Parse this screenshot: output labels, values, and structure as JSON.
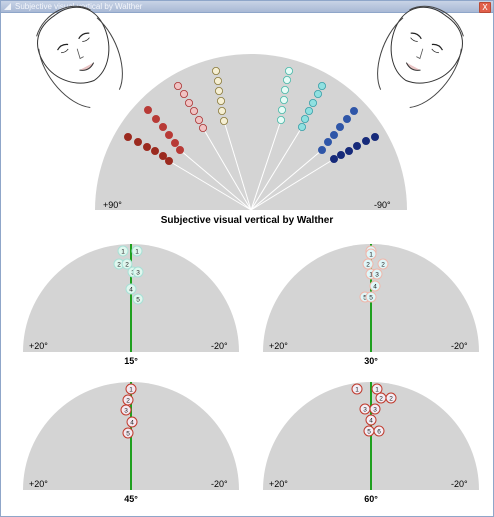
{
  "window": {
    "title": "Subjective visual vertical by Walther",
    "close_glyph": "X"
  },
  "main": {
    "title": "Subjective visual vertical by Walther",
    "left_angle": "+90°",
    "right_angle": "-90°",
    "groups": [
      {
        "color": "#9b2a1f",
        "points": [
          [
            128,
            137
          ],
          [
            138,
            142
          ],
          [
            147,
            147
          ],
          [
            155,
            151
          ],
          [
            163,
            156
          ],
          [
            169,
            161
          ]
        ]
      },
      {
        "color": "#b83a36",
        "points": [
          [
            148,
            110
          ],
          [
            156,
            119
          ],
          [
            163,
            127
          ],
          [
            169,
            135
          ],
          [
            175,
            143
          ],
          [
            180,
            150
          ]
        ]
      },
      {
        "color": "#f0c3c3",
        "stroke": "#a33",
        "points": [
          [
            178,
            86
          ],
          [
            184,
            94
          ],
          [
            189,
            103
          ],
          [
            194,
            111
          ],
          [
            199,
            120
          ],
          [
            203,
            128
          ]
        ]
      },
      {
        "color": "#f5efd3",
        "stroke": "#8a7a3b",
        "points": [
          [
            216,
            71
          ],
          [
            218,
            81
          ],
          [
            219,
            91
          ],
          [
            221,
            101
          ],
          [
            222,
            111
          ],
          [
            224,
            121
          ]
        ]
      },
      {
        "color": "#e6fbf6",
        "stroke": "#48b8a8",
        "points": [
          [
            289,
            71
          ],
          [
            287,
            80
          ],
          [
            285,
            90
          ],
          [
            284,
            100
          ],
          [
            282,
            110
          ],
          [
            281,
            120
          ]
        ]
      },
      {
        "color": "#8fe0e0",
        "stroke": "#3a9fa8",
        "points": [
          [
            322,
            86
          ],
          [
            318,
            94
          ],
          [
            313,
            103
          ],
          [
            309,
            111
          ],
          [
            305,
            119
          ],
          [
            302,
            127
          ]
        ]
      },
      {
        "color": "#2f56a8",
        "points": [
          [
            354,
            111
          ],
          [
            347,
            119
          ],
          [
            340,
            127
          ],
          [
            334,
            135
          ],
          [
            328,
            142
          ],
          [
            322,
            150
          ]
        ]
      },
      {
        "color": "#162a7a",
        "points": [
          [
            375,
            137
          ],
          [
            366,
            141
          ],
          [
            357,
            146
          ],
          [
            349,
            151
          ],
          [
            341,
            155
          ],
          [
            334,
            159
          ]
        ]
      }
    ]
  },
  "panels": [
    {
      "caption": "15°",
      "left_angle": "+20°",
      "right_angle": "-20°",
      "marker_fill": "#dff7ee",
      "marker_stroke": "#a8e0d6",
      "markers": [
        {
          "label": "1",
          "dx": -8,
          "dy": 7
        },
        {
          "label": "1",
          "dx": 6,
          "dy": 7
        },
        {
          "label": "2",
          "dx": -12,
          "dy": 20
        },
        {
          "label": "2",
          "dx": -4,
          "dy": 20
        },
        {
          "label": "3",
          "dx": 2,
          "dy": 28
        },
        {
          "label": "3",
          "dx": 7,
          "dy": 28
        },
        {
          "label": "4",
          "dx": 0,
          "dy": 45
        },
        {
          "label": "5",
          "dx": 7,
          "dy": 55
        }
      ]
    },
    {
      "caption": "30°",
      "left_angle": "+20°",
      "right_angle": "-20°",
      "marker_fill": "#dff7f9",
      "marker_stroke": "#f0b6aa",
      "markers": [
        {
          "label": "1",
          "dx": 0,
          "dy": 7
        },
        {
          "label": "1",
          "dx": 0,
          "dy": 10
        },
        {
          "label": "2",
          "dx": -3,
          "dy": 20
        },
        {
          "label": "2",
          "dx": 12,
          "dy": 20
        },
        {
          "label": "1",
          "dx": 0,
          "dy": 30
        },
        {
          "label": "3",
          "dx": 6,
          "dy": 30
        },
        {
          "label": "4",
          "dx": 4,
          "dy": 42
        },
        {
          "label": "5",
          "dx": -6,
          "dy": 53
        },
        {
          "label": "5",
          "dx": 0,
          "dy": 53
        }
      ]
    },
    {
      "caption": "45°",
      "left_angle": "+20°",
      "right_angle": "-20°",
      "marker_fill": "#f4e8f0",
      "marker_stroke": "#c0392b",
      "markers": [
        {
          "label": "1",
          "dx": 0,
          "dy": 7
        },
        {
          "label": "2",
          "dx": -3,
          "dy": 18
        },
        {
          "label": "3",
          "dx": -5,
          "dy": 28
        },
        {
          "label": "4",
          "dx": 1,
          "dy": 40
        },
        {
          "label": "5",
          "dx": -3,
          "dy": 51
        }
      ]
    },
    {
      "caption": "60°",
      "left_angle": "+20°",
      "right_angle": "-20°",
      "marker_fill": "#f3eef6",
      "marker_stroke": "#c0392b",
      "markers": [
        {
          "label": "1",
          "dx": -14,
          "dy": 7
        },
        {
          "label": "1",
          "dx": 6,
          "dy": 7
        },
        {
          "label": "2",
          "dx": 10,
          "dy": 16
        },
        {
          "label": "2",
          "dx": 20,
          "dy": 16
        },
        {
          "label": "3",
          "dx": -6,
          "dy": 27
        },
        {
          "label": "3",
          "dx": 4,
          "dy": 27
        },
        {
          "label": "4",
          "dx": 0,
          "dy": 38
        },
        {
          "label": "5",
          "dx": -2,
          "dy": 49
        },
        {
          "label": "6",
          "dx": 8,
          "dy": 49
        }
      ]
    }
  ]
}
